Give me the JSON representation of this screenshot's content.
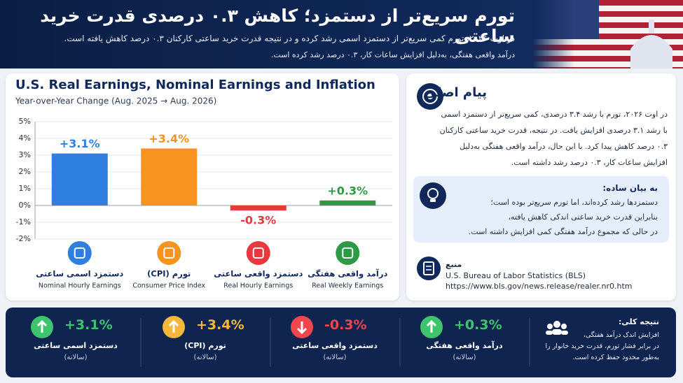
{
  "header": {
    "title": "تورم سریع‌تر از دستمزد؛ کاهش ۰.۳ درصدی قدرت خرید ساعتی",
    "subtitle_lines": [
      "در اوت ۲۰۲۶، تورم کمی سریع‌تر از دستمزد اسمی رشد کرده و در نتیجه قدرت خرید ساعتی کارکنان ۰.۳ درصد کاهش یافته است.",
      "درآمد واقعی هفتگی، به‌دلیل افزایش ساعات کار، ۰.۳ درصد رشد کرده است."
    ]
  },
  "chart_data": {
    "type": "bar",
    "title": "U.S. Real Earnings, Nominal Earnings and Inflation",
    "subtitle": "Year-over-Year Change (Aug. 2025 → Aug. 2026)",
    "categories": [
      "دستمزد اسمی ساعتی",
      "تورم (CPI)",
      "دستمزد واقعی ساعتی",
      "درآمد واقعی هفتگی"
    ],
    "category_subtitles": [
      "Nominal Hourly Earnings",
      "Consumer Price Index",
      "Real Hourly Earnings",
      "Real Weekly Earnings"
    ],
    "values": [
      3.1,
      3.4,
      -0.3,
      0.3
    ],
    "value_labels": [
      "+3.1%",
      "+3.4%",
      "-0.3%",
      "+0.3%"
    ],
    "colors": [
      "#2f7fe0",
      "#f7931e",
      "#e8393f",
      "#2e9a45"
    ],
    "ylim": [
      -2,
      5
    ],
    "yticks": [
      {
        "value": 5,
        "label": "5%"
      },
      {
        "value": 4,
        "label": "4%"
      },
      {
        "value": 3,
        "label": "3%"
      },
      {
        "value": 2,
        "label": "2%"
      },
      {
        "value": 1,
        "label": "1%"
      },
      {
        "value": 0,
        "label": "0%"
      },
      {
        "value": -1,
        "label": "-1%"
      },
      {
        "value": -2,
        "label": "-2%"
      }
    ],
    "grid": true
  },
  "key_message": {
    "title": "پیام اصلی",
    "lines": [
      "در اوت ۲۰۲۶، تورم با رشد ۳.۴ درصدی، کمی سریع‌تر از دستمزد اسمی",
      "با رشد ۳.۱ درصدی افزایش یافت. در نتیجه، قدرت خرید ساعتی کارکنان",
      "۰.۳ درصد کاهش پیدا کرد. با این حال، درآمد واقعی هفتگی به‌دلیل",
      "افزایش ساعات کار، ۰.۳ درصد رشد داشته است."
    ]
  },
  "simple": {
    "title": "به بیان ساده:",
    "lines": [
      "دستمزدها رشد کرده‌اند، اما تورم سریع‌تر بوده است؛",
      "بنابراین قدرت خرید ساعتی اندکی کاهش یافته،",
      "در حالی که مجموع درآمد هفتگی کمی افزایش داشته است."
    ]
  },
  "source": {
    "label": "منبع",
    "lines": [
      "U.S. Bureau of Labor Statistics (BLS)",
      "https://www.bls.gov/news.release/realer.nr0.htm"
    ]
  },
  "summary": {
    "items": [
      {
        "value": "+3.1%",
        "name": "دستمزد اسمی ساعتی",
        "period": "(سالانه)"
      },
      {
        "value": "+3.4%",
        "name": "تورم (CPI)",
        "period": "(سالانه)"
      },
      {
        "value": "-0.3%",
        "name": "دستمزد واقعی ساعتی",
        "period": "(سالانه)"
      },
      {
        "value": "+0.3%",
        "name": "درآمد واقعی هفتگی",
        "period": "(سالانه)"
      }
    ],
    "conclusion": {
      "title": "نتیجه کلی:",
      "lines": [
        "افزایش اندک درآمد هفتگی،",
        "در برابر فشار تورم، قدرت خرید خانوار را",
        "به‌طور محدود حفظ کرده است."
      ]
    }
  }
}
